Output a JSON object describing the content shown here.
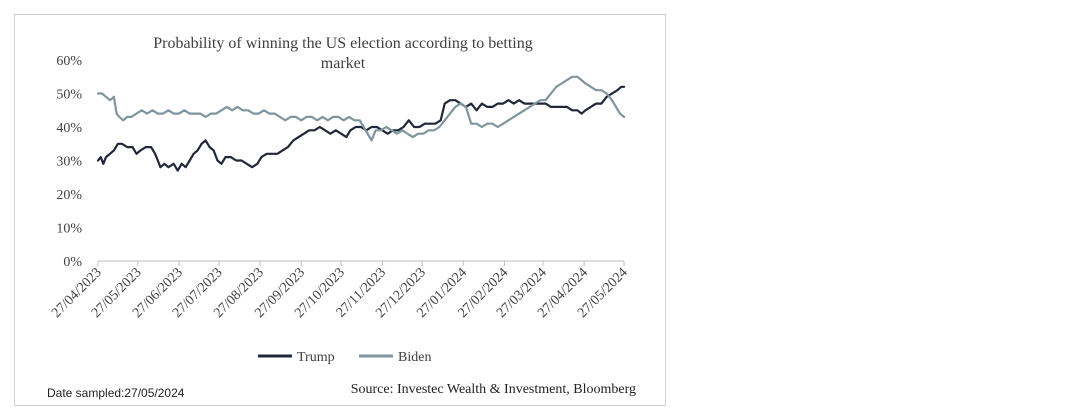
{
  "chart_data": {
    "type": "line",
    "title": "Probability of winning the US election according to betting market",
    "title_lines": [
      "Probability of winning the US election according to betting",
      "market"
    ],
    "xlabel": "",
    "ylabel": "",
    "ylim": [
      0,
      60
    ],
    "y_ticks": [
      0,
      10,
      20,
      30,
      40,
      50,
      60
    ],
    "y_tick_labels": [
      "0%",
      "10%",
      "20%",
      "30%",
      "40%",
      "50%",
      "60%"
    ],
    "x_range": [
      "2023-04-27",
      "2024-05-27"
    ],
    "x_ticks": [
      "2023-04-27",
      "2023-05-27",
      "2023-06-27",
      "2023-07-27",
      "2023-08-27",
      "2023-09-27",
      "2023-10-27",
      "2023-11-27",
      "2023-12-27",
      "2024-01-27",
      "2024-02-27",
      "2024-03-27",
      "2024-04-27",
      "2024-05-27"
    ],
    "x_tick_labels": [
      "27/04/2023",
      "27/05/2023",
      "27/06/2023",
      "27/07/2023",
      "27/08/2023",
      "27/09/2023",
      "27/10/2023",
      "27/11/2023",
      "27/12/2023",
      "27/01/2024",
      "27/02/2024",
      "27/03/2024",
      "27/04/2024",
      "27/05/2024"
    ],
    "grid": false,
    "legend": "bottom",
    "series": [
      {
        "name": "Trump",
        "color": "#1f2738",
        "points": [
          [
            "2023-04-27",
            30
          ],
          [
            "2023-04-29",
            31
          ],
          [
            "2023-05-01",
            29
          ],
          [
            "2023-05-03",
            31
          ],
          [
            "2023-05-06",
            32
          ],
          [
            "2023-05-09",
            33
          ],
          [
            "2023-05-12",
            35
          ],
          [
            "2023-05-15",
            35
          ],
          [
            "2023-05-19",
            34
          ],
          [
            "2023-05-23",
            34
          ],
          [
            "2023-05-26",
            32
          ],
          [
            "2023-05-29",
            33
          ],
          [
            "2023-06-02",
            34
          ],
          [
            "2023-06-06",
            34
          ],
          [
            "2023-06-09",
            32
          ],
          [
            "2023-06-11",
            30
          ],
          [
            "2023-06-13",
            28
          ],
          [
            "2023-06-16",
            29
          ],
          [
            "2023-06-19",
            28
          ],
          [
            "2023-06-23",
            29
          ],
          [
            "2023-06-26",
            27
          ],
          [
            "2023-06-29",
            29
          ],
          [
            "2023-07-02",
            28
          ],
          [
            "2023-07-05",
            30
          ],
          [
            "2023-07-08",
            32
          ],
          [
            "2023-07-11",
            33
          ],
          [
            "2023-07-14",
            35
          ],
          [
            "2023-07-17",
            36
          ],
          [
            "2023-07-20",
            34
          ],
          [
            "2023-07-23",
            33
          ],
          [
            "2023-07-26",
            30
          ],
          [
            "2023-07-29",
            29
          ],
          [
            "2023-08-01",
            31
          ],
          [
            "2023-08-05",
            31
          ],
          [
            "2023-08-09",
            30
          ],
          [
            "2023-08-13",
            30
          ],
          [
            "2023-08-17",
            29
          ],
          [
            "2023-08-21",
            28
          ],
          [
            "2023-08-25",
            29
          ],
          [
            "2023-08-28",
            31
          ],
          [
            "2023-09-01",
            32
          ],
          [
            "2023-09-05",
            32
          ],
          [
            "2023-09-09",
            32
          ],
          [
            "2023-09-13",
            33
          ],
          [
            "2023-09-17",
            34
          ],
          [
            "2023-09-21",
            36
          ],
          [
            "2023-09-25",
            37
          ],
          [
            "2023-09-29",
            38
          ],
          [
            "2023-10-03",
            39
          ],
          [
            "2023-10-07",
            39
          ],
          [
            "2023-10-11",
            40
          ],
          [
            "2023-10-15",
            39
          ],
          [
            "2023-10-19",
            38
          ],
          [
            "2023-10-23",
            39
          ],
          [
            "2023-10-27",
            38
          ],
          [
            "2023-10-31",
            37
          ],
          [
            "2023-11-03",
            39
          ],
          [
            "2023-11-07",
            40
          ],
          [
            "2023-11-11",
            40
          ],
          [
            "2023-11-15",
            39
          ],
          [
            "2023-11-19",
            40
          ],
          [
            "2023-11-23",
            40
          ],
          [
            "2023-11-27",
            39
          ],
          [
            "2023-12-01",
            38
          ],
          [
            "2023-12-05",
            39
          ],
          [
            "2023-12-09",
            39
          ],
          [
            "2023-12-13",
            40
          ],
          [
            "2023-12-17",
            42
          ],
          [
            "2023-12-21",
            40
          ],
          [
            "2023-12-25",
            40
          ],
          [
            "2023-12-29",
            41
          ],
          [
            "2024-01-02",
            41
          ],
          [
            "2024-01-06",
            41
          ],
          [
            "2024-01-10",
            42
          ],
          [
            "2024-01-13",
            47
          ],
          [
            "2024-01-17",
            48
          ],
          [
            "2024-01-21",
            48
          ],
          [
            "2024-01-25",
            47
          ],
          [
            "2024-01-29",
            46
          ],
          [
            "2024-02-02",
            47
          ],
          [
            "2024-02-06",
            45
          ],
          [
            "2024-02-10",
            47
          ],
          [
            "2024-02-14",
            46
          ],
          [
            "2024-02-18",
            46
          ],
          [
            "2024-02-22",
            47
          ],
          [
            "2024-02-26",
            47
          ],
          [
            "2024-03-01",
            48
          ],
          [
            "2024-03-05",
            47
          ],
          [
            "2024-03-09",
            48
          ],
          [
            "2024-03-13",
            47
          ],
          [
            "2024-03-17",
            47
          ],
          [
            "2024-03-21",
            47
          ],
          [
            "2024-03-25",
            47
          ],
          [
            "2024-03-29",
            47
          ],
          [
            "2024-04-02",
            46
          ],
          [
            "2024-04-06",
            46
          ],
          [
            "2024-04-10",
            46
          ],
          [
            "2024-04-14",
            46
          ],
          [
            "2024-04-18",
            45
          ],
          [
            "2024-04-22",
            45
          ],
          [
            "2024-04-25",
            44
          ],
          [
            "2024-04-28",
            45
          ],
          [
            "2024-05-02",
            46
          ],
          [
            "2024-05-06",
            47
          ],
          [
            "2024-05-10",
            47
          ],
          [
            "2024-05-14",
            49
          ],
          [
            "2024-05-18",
            50
          ],
          [
            "2024-05-22",
            51
          ],
          [
            "2024-05-25",
            52
          ],
          [
            "2024-05-27",
            52
          ]
        ]
      },
      {
        "name": "Biden",
        "color": "#7f959e",
        "points": [
          [
            "2023-04-27",
            50
          ],
          [
            "2023-04-30",
            50
          ],
          [
            "2023-05-03",
            49
          ],
          [
            "2023-05-06",
            48
          ],
          [
            "2023-05-09",
            49
          ],
          [
            "2023-05-11",
            44
          ],
          [
            "2023-05-13",
            43
          ],
          [
            "2023-05-16",
            42
          ],
          [
            "2023-05-19",
            43
          ],
          [
            "2023-05-22",
            43
          ],
          [
            "2023-05-26",
            44
          ],
          [
            "2023-05-30",
            45
          ],
          [
            "2023-06-03",
            44
          ],
          [
            "2023-06-07",
            45
          ],
          [
            "2023-06-11",
            44
          ],
          [
            "2023-06-15",
            44
          ],
          [
            "2023-06-19",
            45
          ],
          [
            "2023-06-23",
            44
          ],
          [
            "2023-06-27",
            44
          ],
          [
            "2023-07-01",
            45
          ],
          [
            "2023-07-05",
            44
          ],
          [
            "2023-07-09",
            44
          ],
          [
            "2023-07-13",
            44
          ],
          [
            "2023-07-17",
            43
          ],
          [
            "2023-07-21",
            44
          ],
          [
            "2023-07-25",
            44
          ],
          [
            "2023-07-29",
            45
          ],
          [
            "2023-08-02",
            46
          ],
          [
            "2023-08-06",
            45
          ],
          [
            "2023-08-10",
            46
          ],
          [
            "2023-08-14",
            45
          ],
          [
            "2023-08-18",
            45
          ],
          [
            "2023-08-22",
            44
          ],
          [
            "2023-08-26",
            44
          ],
          [
            "2023-08-30",
            45
          ],
          [
            "2023-09-03",
            44
          ],
          [
            "2023-09-07",
            44
          ],
          [
            "2023-09-11",
            43
          ],
          [
            "2023-09-15",
            42
          ],
          [
            "2023-09-19",
            43
          ],
          [
            "2023-09-23",
            43
          ],
          [
            "2023-09-27",
            42
          ],
          [
            "2023-10-01",
            43
          ],
          [
            "2023-10-05",
            43
          ],
          [
            "2023-10-09",
            42
          ],
          [
            "2023-10-13",
            43
          ],
          [
            "2023-10-17",
            42
          ],
          [
            "2023-10-21",
            43
          ],
          [
            "2023-10-25",
            43
          ],
          [
            "2023-10-29",
            42
          ],
          [
            "2023-11-02",
            43
          ],
          [
            "2023-11-06",
            42
          ],
          [
            "2023-11-10",
            42
          ],
          [
            "2023-11-13",
            40
          ],
          [
            "2023-11-16",
            38
          ],
          [
            "2023-11-19",
            36
          ],
          [
            "2023-11-22",
            39
          ],
          [
            "2023-11-26",
            39
          ],
          [
            "2023-11-30",
            40
          ],
          [
            "2023-12-04",
            39
          ],
          [
            "2023-12-08",
            38
          ],
          [
            "2023-12-12",
            39
          ],
          [
            "2023-12-16",
            38
          ],
          [
            "2023-12-20",
            37
          ],
          [
            "2023-12-24",
            38
          ],
          [
            "2023-12-28",
            38
          ],
          [
            "2024-01-01",
            39
          ],
          [
            "2024-01-05",
            39
          ],
          [
            "2024-01-09",
            40
          ],
          [
            "2024-01-13",
            42
          ],
          [
            "2024-01-17",
            44
          ],
          [
            "2024-01-21",
            46
          ],
          [
            "2024-01-25",
            47
          ],
          [
            "2024-01-29",
            46
          ],
          [
            "2024-02-02",
            41
          ],
          [
            "2024-02-06",
            41
          ],
          [
            "2024-02-10",
            40
          ],
          [
            "2024-02-14",
            41
          ],
          [
            "2024-02-18",
            41
          ],
          [
            "2024-02-22",
            40
          ],
          [
            "2024-02-26",
            41
          ],
          [
            "2024-03-01",
            42
          ],
          [
            "2024-03-05",
            43
          ],
          [
            "2024-03-09",
            44
          ],
          [
            "2024-03-13",
            45
          ],
          [
            "2024-03-17",
            46
          ],
          [
            "2024-03-21",
            47
          ],
          [
            "2024-03-25",
            48
          ],
          [
            "2024-03-29",
            48
          ],
          [
            "2024-04-02",
            50
          ],
          [
            "2024-04-06",
            52
          ],
          [
            "2024-04-10",
            53
          ],
          [
            "2024-04-14",
            54
          ],
          [
            "2024-04-18",
            55
          ],
          [
            "2024-04-22",
            55
          ],
          [
            "2024-04-25",
            54
          ],
          [
            "2024-04-28",
            53
          ],
          [
            "2024-05-02",
            52
          ],
          [
            "2024-05-06",
            51
          ],
          [
            "2024-05-10",
            51
          ],
          [
            "2024-05-14",
            50
          ],
          [
            "2024-05-18",
            48
          ],
          [
            "2024-05-21",
            46
          ],
          [
            "2024-05-24",
            44
          ],
          [
            "2024-05-27",
            43
          ]
        ]
      }
    ]
  },
  "footer": {
    "date_sampled": "Date sampled:27/05/2024",
    "source": "Source: Investec Wealth & Investment, Bloomberg"
  },
  "colors": {
    "trump": "#1f2738",
    "biden": "#7f959e",
    "axis": "#bfbfbf",
    "text": "#404040"
  }
}
